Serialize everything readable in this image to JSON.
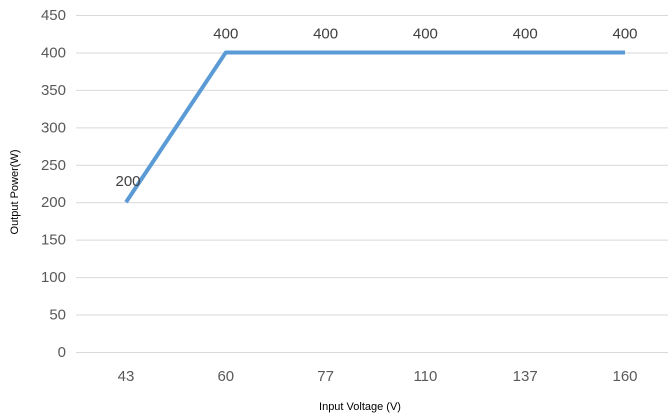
{
  "chart_data": {
    "type": "line",
    "categories": [
      "43",
      "60",
      "77",
      "110",
      "137",
      "160"
    ],
    "series": [
      {
        "values": [
          200,
          400,
          400,
          400,
          400,
          400
        ],
        "color": "#5b9bd5"
      }
    ],
    "data_labels": [
      "200",
      "400",
      "400",
      "400",
      "400",
      "400"
    ],
    "yticks": [
      "0",
      "50",
      "100",
      "150",
      "200",
      "250",
      "300",
      "350",
      "400",
      "450"
    ],
    "ylim": [
      0,
      450
    ],
    "xlabel": "Input Voltage (V)",
    "ylabel": "Output Power(W)",
    "grid": true,
    "gridline_color": "#d9d9d9",
    "legend": "none"
  }
}
